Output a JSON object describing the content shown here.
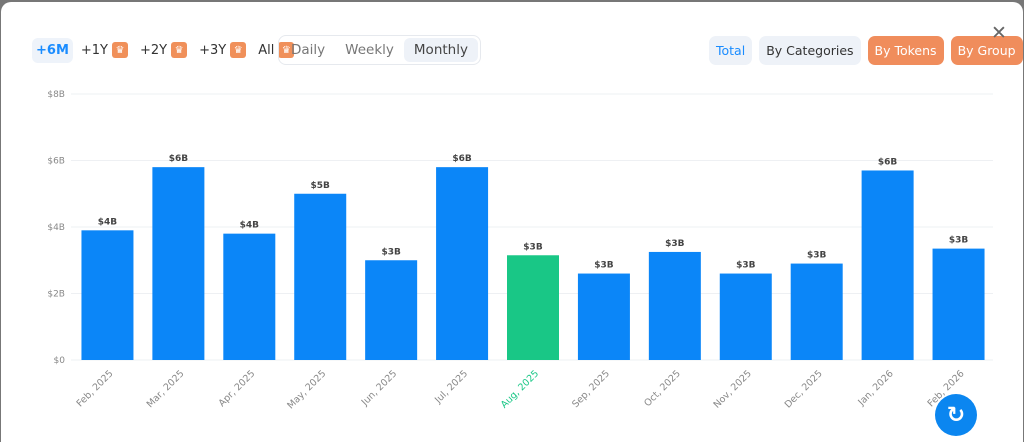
{
  "range_options": [
    {
      "label": "+6M",
      "active": true,
      "premium": false
    },
    {
      "label": "+1Y",
      "active": false,
      "premium": true
    },
    {
      "label": "+2Y",
      "active": false,
      "premium": true
    },
    {
      "label": "+3Y",
      "active": false,
      "premium": true
    },
    {
      "label": "All",
      "active": false,
      "premium": true
    }
  ],
  "period_options": [
    {
      "label": "Daily"
    },
    {
      "label": "Weekly"
    },
    {
      "label": "Monthly",
      "active": true
    }
  ],
  "view_options": [
    {
      "label": "Total",
      "active": true
    },
    {
      "label": "By Categories"
    },
    {
      "label": "By Tokens",
      "premium": true
    },
    {
      "label": "By Group",
      "premium": true
    }
  ],
  "icons": {
    "crown": "crown-icon",
    "close": "close-icon",
    "fab": "refresh-arrow-icon"
  },
  "colors": {
    "bar": "#0b86f8",
    "highlight": "#19c786",
    "premium": "#f08d5c",
    "accent": "#1a8cff"
  },
  "chart_data": {
    "type": "bar",
    "categories": [
      "Feb, 2025",
      "Mar, 2025",
      "Apr, 2025",
      "May, 2025",
      "Jun, 2025",
      "Jul, 2025",
      "Aug, 2025",
      "Sep, 2025",
      "Oct, 2025",
      "Nov, 2025",
      "Dec, 2025",
      "Jan, 2026",
      "Feb, 2026"
    ],
    "values": [
      3.9,
      5.8,
      3.8,
      5.0,
      3.0,
      5.8,
      3.15,
      2.6,
      3.25,
      2.6,
      2.9,
      5.7,
      3.35
    ],
    "data_labels": [
      "$4B",
      "$6B",
      "$4B",
      "$5B",
      "$3B",
      "$6B",
      "$3B",
      "$3B",
      "$3B",
      "$3B",
      "$3B",
      "$6B",
      "$3B"
    ],
    "highlight_index": 6,
    "yticks": [
      "$0",
      "$2B",
      "$4B",
      "$6B",
      "$8B"
    ],
    "ytick_values": [
      0,
      2,
      4,
      6,
      8
    ],
    "ylim": [
      0,
      8
    ],
    "unit": "billions USD",
    "grid": true,
    "xlabel": "",
    "ylabel": ""
  }
}
